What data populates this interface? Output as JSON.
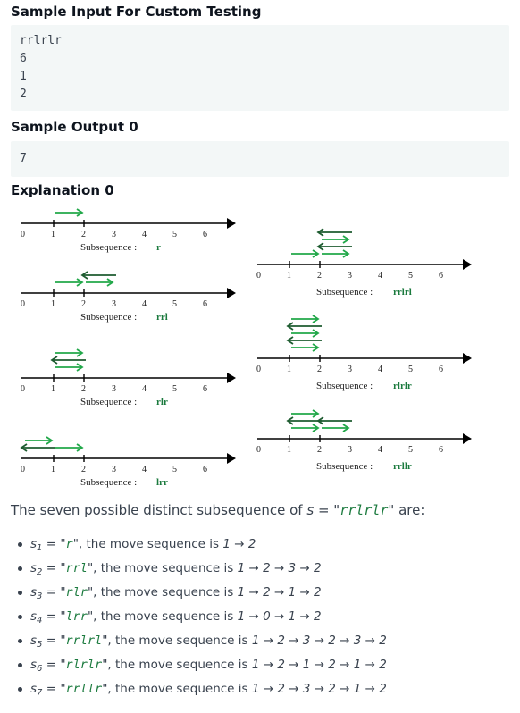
{
  "headings": {
    "sample_input": "Sample Input For Custom Testing",
    "sample_output": "Sample Output 0",
    "explanation": "Explanation 0"
  },
  "sample_input_lines": [
    "rrlrlr",
    "6",
    "1",
    "2"
  ],
  "sample_output_lines": [
    "7"
  ],
  "diagram": {
    "axis_ticks": [
      "0",
      "1",
      "2",
      "3",
      "4",
      "5",
      "6"
    ],
    "subsequence_label": "Subsequence :",
    "panels": [
      {
        "subsequence": "r",
        "moves": [
          1,
          2
        ]
      },
      {
        "subsequence": "rrl",
        "moves": [
          1,
          2,
          3,
          2
        ]
      },
      {
        "subsequence": "rlr",
        "moves": [
          1,
          2,
          1,
          2
        ]
      },
      {
        "subsequence": "lrr",
        "moves": [
          1,
          0,
          1,
          2
        ]
      },
      {
        "subsequence": "rrlrl",
        "moves": [
          1,
          2,
          3,
          2,
          3,
          2
        ]
      },
      {
        "subsequence": "rlrlr",
        "moves": [
          1,
          2,
          1,
          2,
          1,
          2
        ]
      },
      {
        "subsequence": "rrllr",
        "moves": [
          1,
          2,
          3,
          2,
          1,
          2
        ]
      }
    ],
    "colors": {
      "right_arrow": "#22a84a",
      "left_arrow": "#1e5c30",
      "label": "#1b7a3e"
    }
  },
  "intro": {
    "prefix": "The seven possible distinct subsequence of ",
    "var": "s",
    "eq": " = ",
    "open_quote": "\"",
    "string": "rrlrlr",
    "close_quote": "\"",
    "suffix": " are:"
  },
  "items": [
    {
      "var": "s",
      "index": "1",
      "value": "r",
      "mid": "\", the move sequence is ",
      "sequence": "1 → 2"
    },
    {
      "var": "s",
      "index": "2",
      "value": "rrl",
      "mid": "\", the move sequence is ",
      "sequence": "1 → 2 → 3 → 2"
    },
    {
      "var": "s",
      "index": "3",
      "value": "rlr",
      "mid": "\", the move sequence is ",
      "sequence": "1 → 2 → 1 → 2"
    },
    {
      "var": "s",
      "index": "4",
      "value": "lrr",
      "mid": "\", the move sequence is ",
      "sequence": "1 → 0 → 1 → 2"
    },
    {
      "var": "s",
      "index": "5",
      "value": "rrlrl",
      "mid": "\", the move sequence is ",
      "sequence": "1 → 2 → 3 → 2 → 3 → 2"
    },
    {
      "var": "s",
      "index": "6",
      "value": "rlrlr",
      "mid": "\", the move sequence is ",
      "sequence": "1 → 2 → 1 → 2 → 1 → 2"
    },
    {
      "var": "s",
      "index": "7",
      "value": "rrllr",
      "mid": "\", the move sequence is ",
      "sequence": "1 → 2 → 3 → 2 → 1 → 2"
    }
  ]
}
